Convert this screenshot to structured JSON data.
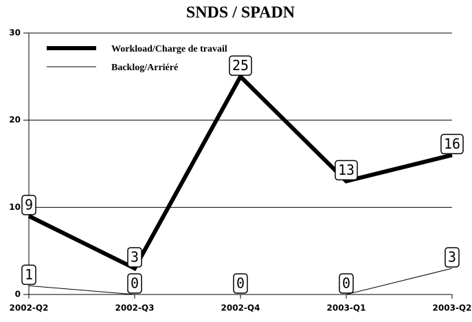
{
  "chart_data": {
    "type": "line",
    "title": "SNDS / SPADN",
    "categories": [
      "2002-Q2",
      "2002-Q3",
      "2002-Q4",
      "2003-Q1",
      "2003-Q2"
    ],
    "series": [
      {
        "name": "Workload/Charge de travail",
        "color": "#000000",
        "line_width": 6,
        "values": [
          9,
          3,
          25,
          13,
          16
        ]
      },
      {
        "name": "Backlog/Arriéré",
        "color": "#000000",
        "line_width": 1,
        "values": [
          1,
          0,
          0,
          0,
          3
        ]
      }
    ],
    "ylim": [
      0,
      30
    ],
    "yticks": [
      0,
      10,
      20,
      30
    ],
    "grid": true,
    "legend": "upper left"
  }
}
